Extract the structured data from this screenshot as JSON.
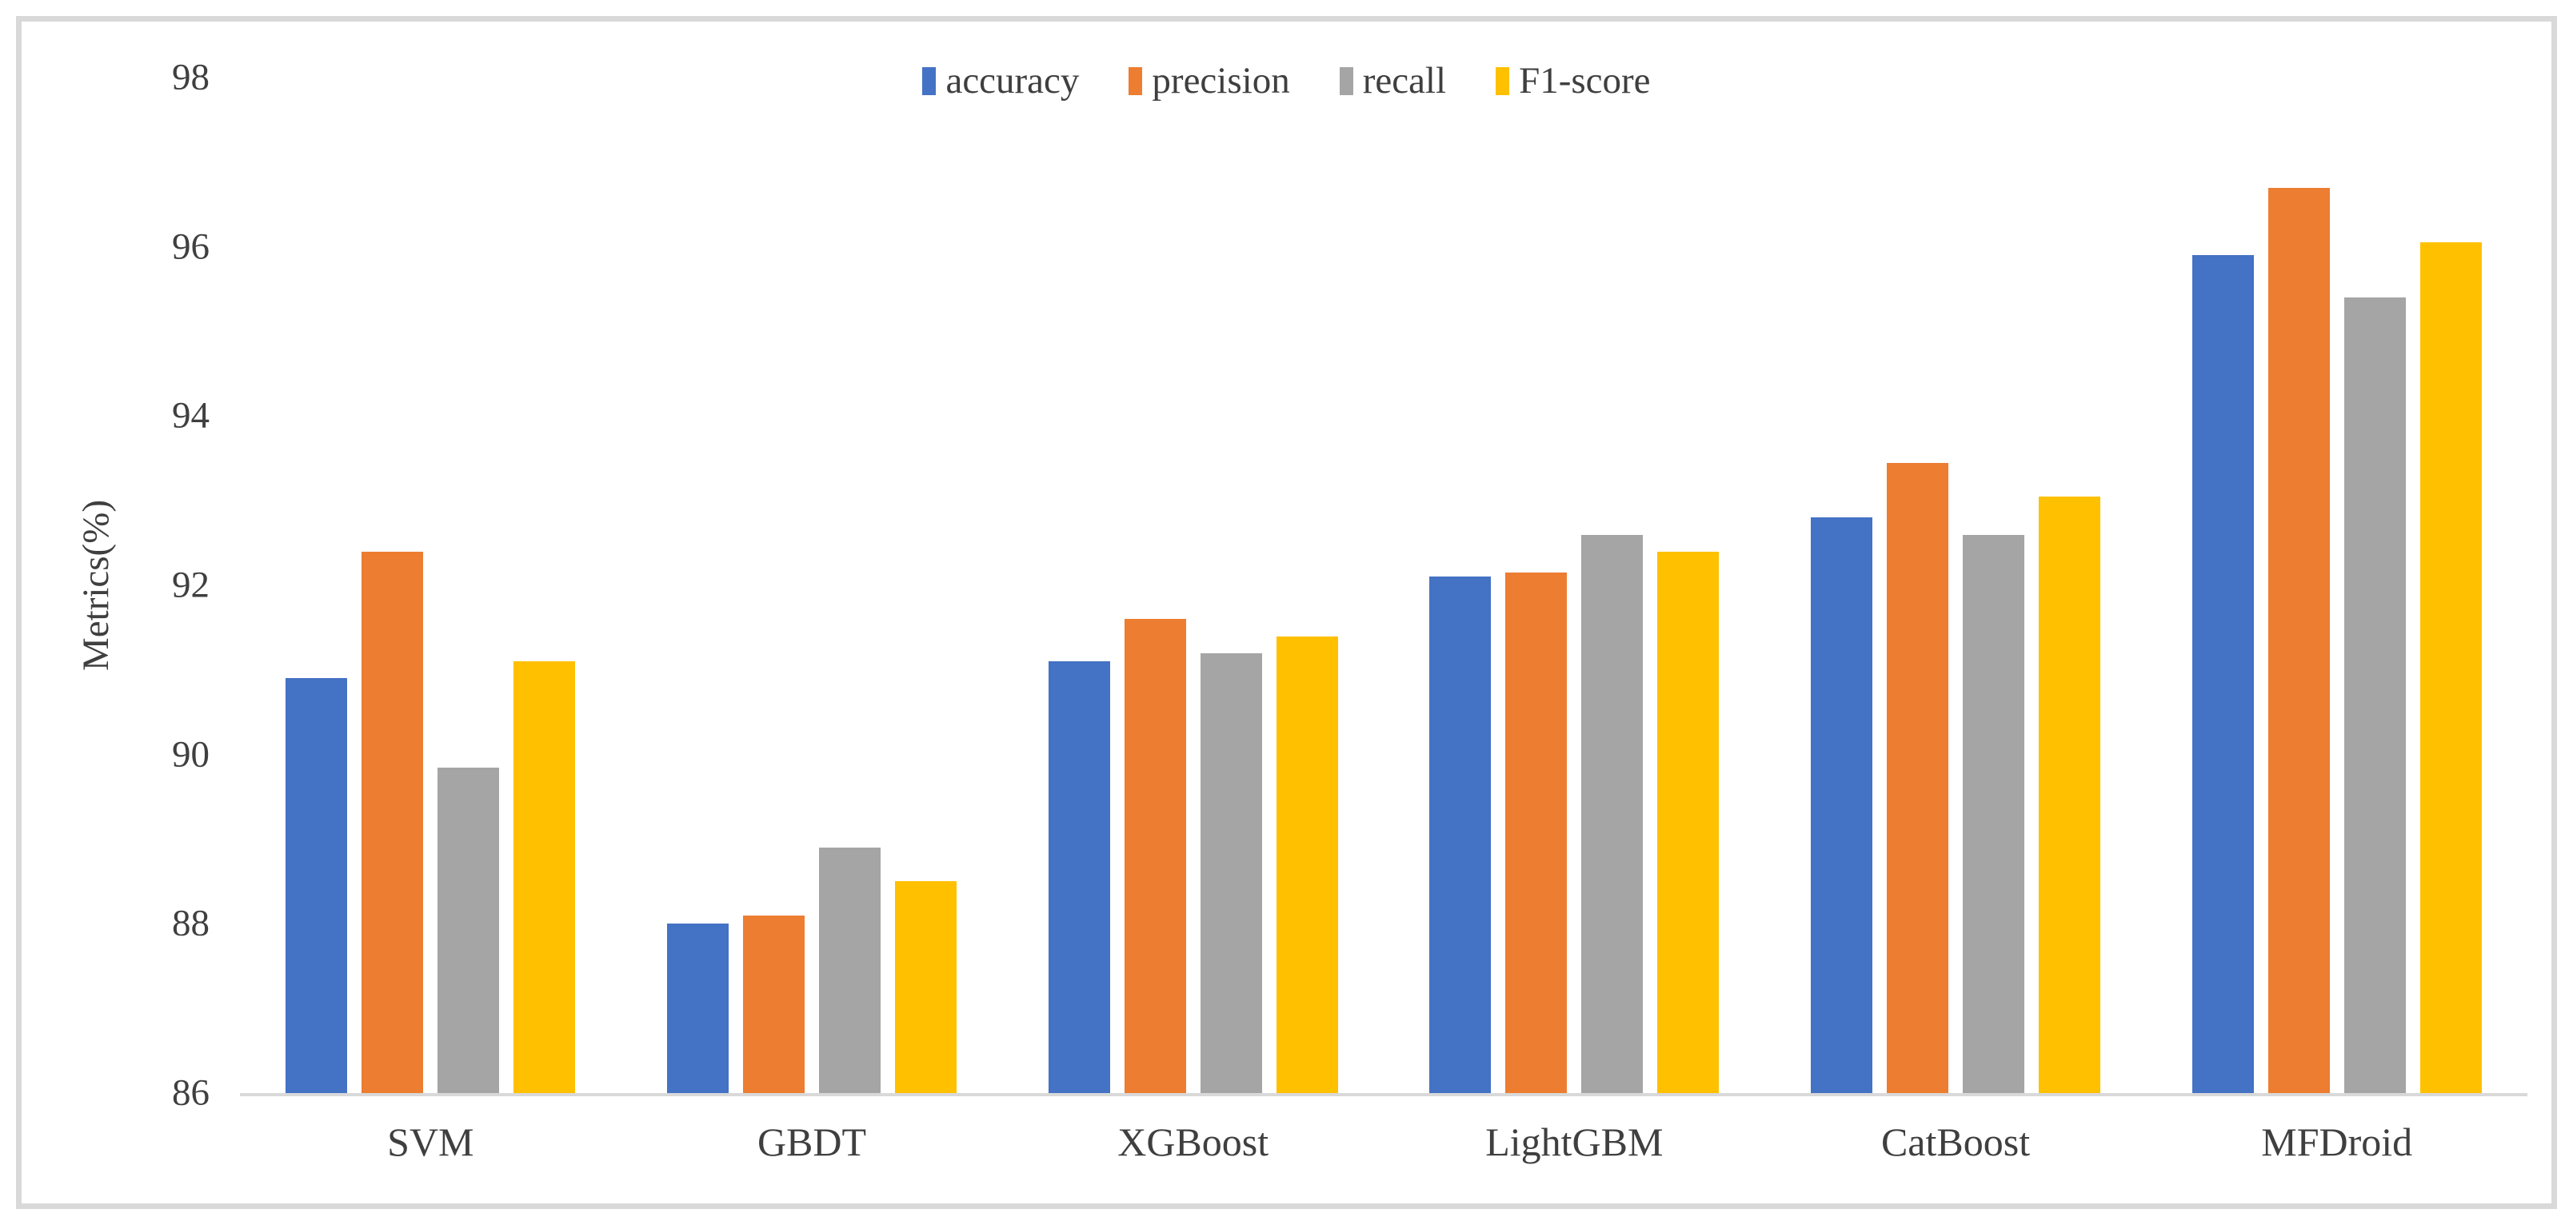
{
  "figure": {
    "background_color": "#ffffff",
    "frame_border_color": "#d9d9d9",
    "text_color": "#3f3f3f",
    "axis_line_color": "#d9d9d9"
  },
  "y_axis": {
    "title": "Metrics(%)",
    "min": 86,
    "max": 98,
    "ticks": [
      86,
      88,
      90,
      92,
      94,
      96,
      98
    ]
  },
  "chart_data": {
    "type": "bar",
    "title": "",
    "xlabel": "",
    "ylabel": "Metrics(%)",
    "ylim": [
      86,
      98
    ],
    "yticks": [
      86,
      88,
      90,
      92,
      94,
      96,
      98
    ],
    "grid": false,
    "legend_position": "top-center",
    "categories": [
      "SVM",
      "GBDT",
      "XGBoost",
      "LightGBM",
      "CatBoost",
      "MFDroid"
    ],
    "series": [
      {
        "name": "accuracy",
        "color": "#4472C4",
        "values": [
          90.9,
          88.0,
          91.1,
          92.1,
          92.8,
          95.9
        ]
      },
      {
        "name": "precision",
        "color": "#ED7D31",
        "values": [
          92.4,
          88.1,
          91.6,
          92.15,
          93.45,
          96.7
        ]
      },
      {
        "name": "recall",
        "color": "#A5A5A5",
        "values": [
          89.85,
          88.9,
          91.2,
          92.6,
          92.6,
          95.4
        ]
      },
      {
        "name": "F1-score",
        "color": "#FFC000",
        "values": [
          91.1,
          88.5,
          91.4,
          92.4,
          93.05,
          96.05
        ]
      }
    ]
  }
}
